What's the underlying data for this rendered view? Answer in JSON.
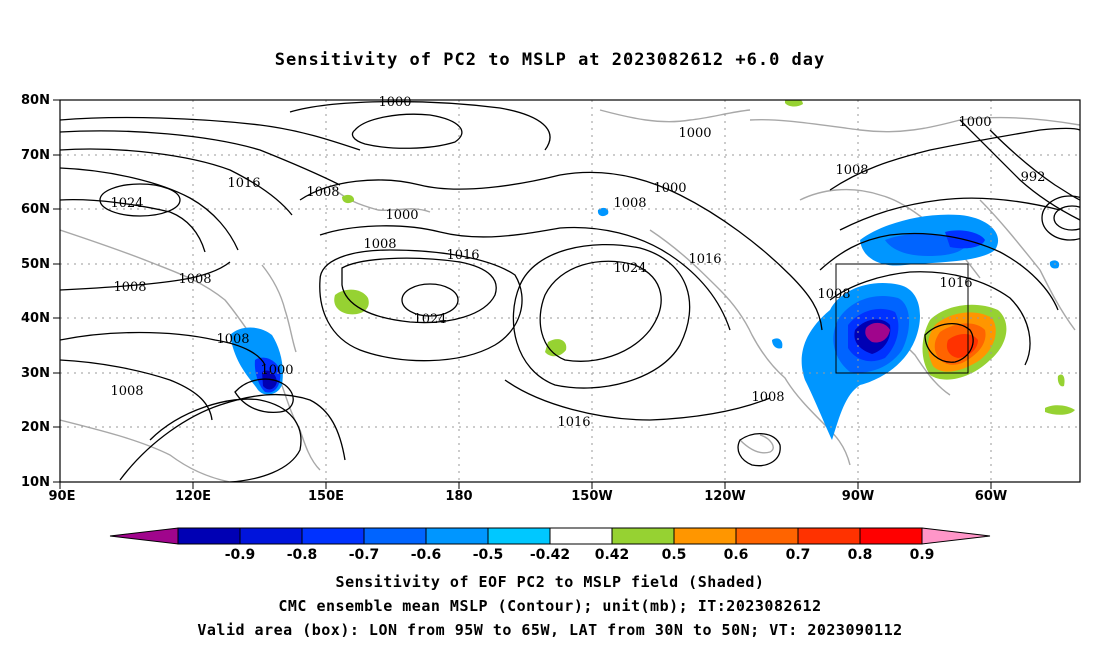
{
  "title": "Sensitivity of PC2 to MSLP at 2023082612 +6.0 day",
  "lat_labels": [
    "80N",
    "70N",
    "60N",
    "50N",
    "40N",
    "30N",
    "20N",
    "10N"
  ],
  "lon_labels": [
    "90E",
    "120E",
    "150E",
    "180",
    "150W",
    "120W",
    "90W",
    "60W"
  ],
  "contour_labels": [
    {
      "text": "1000"
    },
    {
      "text": "1000"
    },
    {
      "text": "1000"
    },
    {
      "text": "1000"
    },
    {
      "text": "1000"
    },
    {
      "text": "1000"
    },
    {
      "text": "992"
    },
    {
      "text": "1008"
    },
    {
      "text": "1008"
    },
    {
      "text": "1008"
    },
    {
      "text": "1008"
    },
    {
      "text": "1008"
    },
    {
      "text": "1008"
    },
    {
      "text": "1008"
    },
    {
      "text": "1008"
    },
    {
      "text": "1008"
    },
    {
      "text": "1008"
    },
    {
      "text": "1016"
    },
    {
      "text": "1016"
    },
    {
      "text": "1016"
    },
    {
      "text": "1016"
    },
    {
      "text": "1016"
    },
    {
      "text": "1024"
    },
    {
      "text": "1024"
    },
    {
      "text": "1024"
    }
  ],
  "colorbar": {
    "labels": [
      "-0.9",
      "-0.8",
      "-0.7",
      "-0.6",
      "-0.5",
      "-0.42",
      "0.42",
      "0.5",
      "0.6",
      "0.7",
      "0.8",
      "0.9"
    ],
    "colors": [
      "#a0058c",
      "#0000b4",
      "#0014dc",
      "#0032ff",
      "#0064ff",
      "#0096ff",
      "#00c8ff",
      "#ffffff",
      "#96d232",
      "#ff9600",
      "#ff6400",
      "#ff3200",
      "#ff0000",
      "#ff96c8"
    ]
  },
  "valid_box": {
    "lon_from": "95W",
    "lon_to": "65W",
    "lat_from": "30N",
    "lat_to": "50N"
  },
  "footer": {
    "line1": "Sensitivity of EOF PC2 to MSLP field (Shaded)",
    "line2": "CMC ensemble mean MSLP (Contour); unit(mb); IT:2023082612",
    "line3": "Valid area (box): LON from 95W to 65W, LAT from 30N to 50N; VT: 2023090112"
  }
}
